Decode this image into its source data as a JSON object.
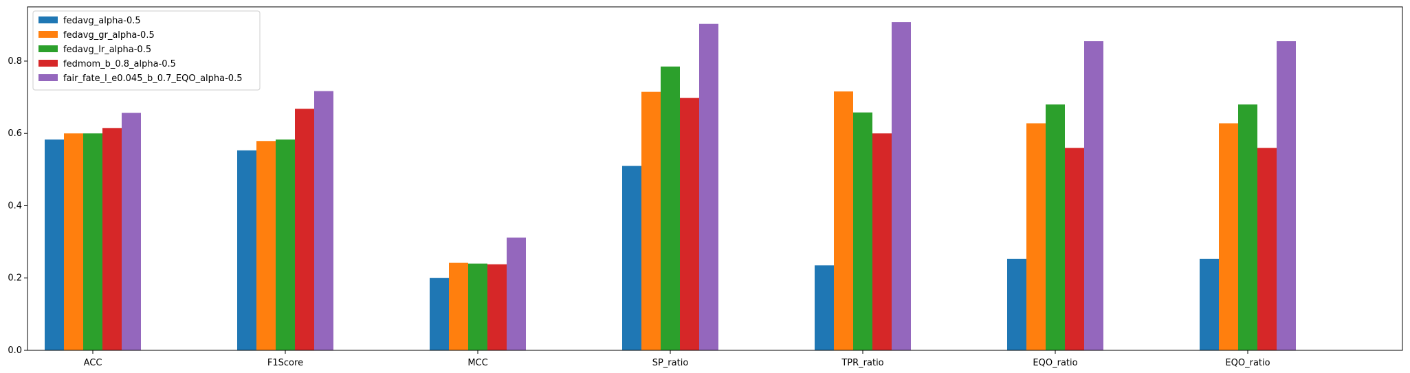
{
  "chart_data": {
    "type": "bar",
    "categories": [
      "ACC",
      "F1Score",
      "MCC",
      "SP_ratio",
      "TPR_ratio",
      "EQO_ratio",
      "EQO_ratio"
    ],
    "series": [
      {
        "name": "fedavg_alpha-0.5",
        "color": "#1f77b4",
        "values": [
          0.583,
          0.553,
          0.2,
          0.51,
          0.235,
          0.253,
          0.253
        ]
      },
      {
        "name": "fedavg_gr_alpha-0.5",
        "color": "#ff7f0e",
        "values": [
          0.6,
          0.579,
          0.242,
          0.715,
          0.716,
          0.628,
          0.628
        ]
      },
      {
        "name": "fedavg_lr_alpha-0.5",
        "color": "#2ca02c",
        "values": [
          0.6,
          0.583,
          0.24,
          0.785,
          0.658,
          0.68,
          0.68
        ]
      },
      {
        "name": "fedmom_b_0.8_alpha-0.5",
        "color": "#d62728",
        "values": [
          0.615,
          0.668,
          0.238,
          0.698,
          0.6,
          0.56,
          0.56
        ]
      },
      {
        "name": "fair_fate_l_e0.045_b_0.7_EQO_alpha-0.5",
        "color": "#9467bd",
        "values": [
          0.657,
          0.717,
          0.312,
          0.903,
          0.908,
          0.855,
          0.855
        ]
      }
    ],
    "yticks": [
      "0.0",
      "0.2",
      "0.4",
      "0.6",
      "0.8"
    ],
    "ylim": [
      0,
      0.95
    ],
    "legend_position": "upper-left",
    "grid": false
  }
}
